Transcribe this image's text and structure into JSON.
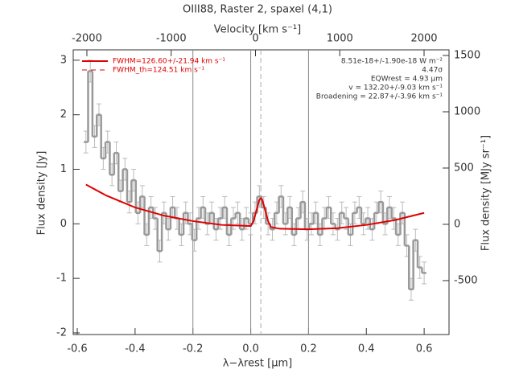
{
  "chart_data": {
    "type": "step",
    "title": "OIII88, Raster 2, spaxel (4,1)",
    "x_label": "λ−λrest [μm]",
    "top_x_label": "Velocity [km s⁻¹]",
    "y_label": "Flux density [Jy]",
    "y2_label": "Flux density [MJy sr⁻¹]",
    "xlim": [
      -0.614,
      0.686
    ],
    "xticks": [
      -0.6,
      -0.4,
      -0.2,
      {
        "value": 0,
        "label": "0.0"
      },
      0.2,
      0.4,
      0.6
    ],
    "top_xlim": [
      -2162,
      2296
    ],
    "top_xticks": [
      -2000,
      -1000,
      0,
      1000,
      2000
    ],
    "ylim": [
      -2.03,
      3.19
    ],
    "yticks": [
      -2,
      -1,
      0,
      1,
      2,
      3
    ],
    "y2lim": [
      -979,
      1550
    ],
    "y2ticks": [
      -500,
      0,
      500,
      1000,
      1500
    ],
    "vlines": [
      -0.2,
      0,
      0.2
    ],
    "dashed_vline": 0.035,
    "error": 0.2,
    "x": [
      -0.57,
      -0.555,
      -0.54,
      -0.525,
      -0.51,
      -0.495,
      -0.48,
      -0.465,
      -0.45,
      -0.435,
      -0.42,
      -0.405,
      -0.39,
      -0.375,
      -0.36,
      -0.345,
      -0.33,
      -0.315,
      -0.3,
      -0.285,
      -0.27,
      -0.255,
      -0.24,
      -0.225,
      -0.21,
      -0.195,
      -0.18,
      -0.165,
      -0.15,
      -0.135,
      -0.12,
      -0.105,
      -0.09,
      -0.075,
      -0.06,
      -0.045,
      -0.03,
      -0.015,
      0,
      0.015,
      0.03,
      0.045,
      0.06,
      0.075,
      0.09,
      0.105,
      0.12,
      0.135,
      0.15,
      0.165,
      0.18,
      0.195,
      0.21,
      0.225,
      0.24,
      0.255,
      0.27,
      0.285,
      0.3,
      0.315,
      0.33,
      0.345,
      0.36,
      0.375,
      0.39,
      0.405,
      0.42,
      0.435,
      0.45,
      0.465,
      0.48,
      0.495,
      0.51,
      0.525,
      0.54,
      0.555,
      0.57,
      0.585,
      0.6
    ],
    "series": [
      {
        "color": "#999999",
        "values": [
          1.5,
          2.8,
          1.6,
          2.0,
          1.2,
          1.5,
          0.9,
          1.3,
          0.6,
          1.0,
          0.4,
          0.8,
          0.2,
          0.5,
          -0.2,
          0.3,
          0.1,
          -0.5,
          0.2,
          -0.1,
          0.3,
          0.1,
          -0.2,
          0.2,
          0.0,
          -0.3,
          0.1,
          0.3,
          0.0,
          0.2,
          -0.1,
          0.1,
          0.3,
          -0.2,
          0.1,
          0.2,
          -0.1,
          0.1,
          0.0,
          0.2,
          0.5,
          0.3,
          0.0,
          -0.1,
          0.2,
          0.5,
          0.0,
          0.3,
          -0.2,
          0.1,
          0.4,
          -0.1,
          0.0,
          0.2,
          -0.2,
          0.1,
          0.3,
          0.0,
          -0.1,
          0.2,
          0.1,
          -0.2,
          0.2,
          0.3,
          0.0,
          0.1,
          -0.1,
          0.2,
          0.4,
          0.0,
          0.3,
          0.1,
          -0.2,
          0.2,
          -0.4,
          -1.2,
          -0.3,
          -0.8,
          -0.9
        ]
      },
      {
        "name": "FWHM=126.60+/-21.94 km s⁻¹",
        "color": "#e00000",
        "x": [
          -0.57,
          -0.5,
          -0.4,
          -0.3,
          -0.2,
          -0.1,
          0,
          0.01,
          0.02,
          0.03,
          0.035,
          0.04,
          0.05,
          0.06,
          0.07,
          0.1,
          0.2,
          0.3,
          0.4,
          0.5,
          0.6
        ],
        "values": [
          0.72,
          0.52,
          0.3,
          0.15,
          0.05,
          -0.02,
          -0.04,
          0.05,
          0.25,
          0.44,
          0.47,
          0.44,
          0.25,
          0.05,
          -0.06,
          -0.09,
          -0.1,
          -0.08,
          -0.02,
          0.07,
          0.2
        ]
      },
      {
        "name": "FWHM_th=124.51 km s⁻¹",
        "color": "#e00000"
      }
    ],
    "annotations": [
      "8.51e-18+/-1.90e-18 W m⁻²",
      "4.47σ",
      "EQWrest = 4.93 μm",
      "v = 132.20+/-9.03 km s⁻¹",
      "Broadening = 22.87+/-3.96 km s⁻¹"
    ]
  }
}
